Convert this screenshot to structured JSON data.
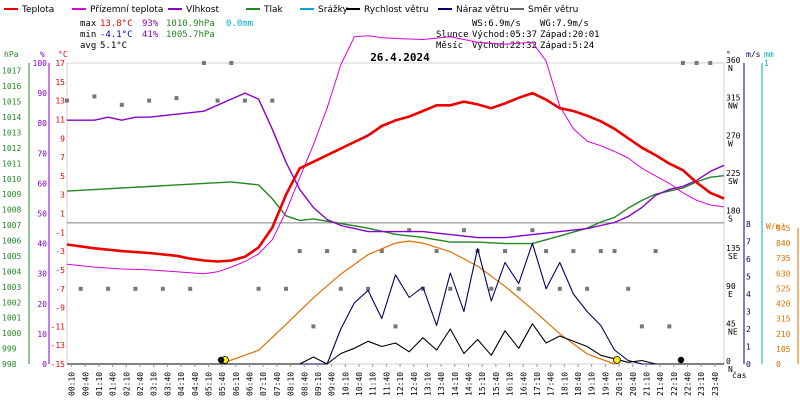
{
  "chart_data": {
    "type": "line",
    "title": "26.4.2024",
    "legend": [
      {
        "name": "Teplota",
        "color": "#ee0000"
      },
      {
        "name": "Přízemní teplota",
        "color": "#dd00dd"
      },
      {
        "name": "Vlhkost",
        "color": "#8800cc"
      },
      {
        "name": "Tlak",
        "color": "#228822"
      },
      {
        "name": "Srážky",
        "color": "#00aacc"
      },
      {
        "name": "Rychlost větru",
        "color": "#000000"
      },
      {
        "name": "Náraz větru",
        "color": "#000066"
      },
      {
        "name": "Směr větru",
        "color": "#666666"
      }
    ],
    "stats": {
      "max_label": "max",
      "max_temp": "13.8°C",
      "max_hum": "93%",
      "max_press": "1010.9hPa",
      "max_rain": "0.0mm",
      "min_label": "min",
      "min_temp": "-4.1°C",
      "min_hum": "41%",
      "min_press": "1005.7hPa",
      "avg_label": "avg",
      "avg_temp": "5.1°C",
      "ws": "WS:6.9m/s",
      "wg": "WG:7.9m/s",
      "sun_label": "Slunce",
      "sunrise": "Východ:05:37",
      "sunset": "Západ:20:01",
      "moon_label": "Měsíc",
      "moonrise": "Východ:22:32",
      "moonset": "Západ:5:24"
    },
    "axes": {
      "hpa_label": "hPa",
      "hum_label": "%",
      "temp_label": "°C",
      "dir_label": "°",
      "ms_label": "m/s",
      "mm_label": "mm",
      "wm2_label": "W/m²",
      "x_label": "čas",
      "hpa_ticks": [
        "1017",
        "1016",
        "1015",
        "1014",
        "1013",
        "1012",
        "1011",
        "1010",
        "1009",
        "1008",
        "1007",
        "1006",
        "1005",
        "1004",
        "1003",
        "1002",
        "1001",
        "1000",
        "999",
        "998"
      ],
      "hum_ticks": [
        "100",
        "90",
        "80",
        "70",
        "60",
        "50",
        "40",
        "30",
        "20",
        "10",
        "0"
      ],
      "temp_ticks": [
        "17",
        "15",
        "13",
        "11",
        "9",
        "7",
        "5",
        "3",
        "1",
        "-1",
        "-3",
        "-5",
        "-7",
        "-9",
        "-11",
        "-13",
        "-15"
      ],
      "dir_ticks": [
        {
          "deg": "360",
          "lab": "N"
        },
        {
          "deg": "315",
          "lab": "NW"
        },
        {
          "deg": "270",
          "lab": "W"
        },
        {
          "deg": "225",
          "lab": "SW"
        },
        {
          "deg": "180",
          "lab": "S"
        },
        {
          "deg": "135",
          "lab": "SE"
        },
        {
          "deg": "90",
          "lab": "E"
        },
        {
          "deg": "45",
          "lab": "NE"
        },
        {
          "deg": "0",
          "lab": "N"
        }
      ],
      "ms_ticks": [
        "8",
        "7",
        "6",
        "5",
        "4",
        "3",
        "2",
        "1",
        "0"
      ],
      "mm_ticks": [
        "1"
      ],
      "wm2_ticks": [
        "945",
        "840",
        "735",
        "630",
        "525",
        "420",
        "315",
        "210",
        "105",
        "0"
      ],
      "time_ticks": [
        "00:10",
        "00:40",
        "01:10",
        "01:40",
        "02:10",
        "02:40",
        "03:10",
        "03:40",
        "04:10",
        "04:40",
        "05:10",
        "05:40",
        "06:10",
        "06:40",
        "07:10",
        "07:40",
        "08:10",
        "08:40",
        "09:10",
        "09:40",
        "10:10",
        "10:40",
        "11:10",
        "11:40",
        "12:10",
        "12:40",
        "13:10",
        "13:40",
        "14:10",
        "14:40",
        "15:10",
        "15:40",
        "16:10",
        "16:40",
        "17:10",
        "17:40",
        "18:10",
        "18:40",
        "19:10",
        "19:40",
        "20:10",
        "20:40",
        "21:10",
        "21:40",
        "22:10",
        "22:40",
        "23:10",
        "23:40"
      ]
    },
    "temperature": {
      "x": [
        0,
        1,
        2,
        3,
        4,
        4.5,
        5,
        5.5,
        6,
        6.5,
        7,
        7.5,
        8,
        8.5,
        9,
        9.5,
        10,
        10.5,
        11,
        11.5,
        12,
        12.5,
        13,
        13.5,
        14,
        14.5,
        15,
        15.5,
        16,
        16.5,
        17,
        17.5,
        18,
        18.5,
        19,
        19.5,
        20,
        20.5,
        21,
        21.5,
        22,
        22.5,
        23,
        23.5,
        24
      ],
      "y": [
        -2.3,
        -2.7,
        -3.0,
        -3.2,
        -3.5,
        -3.8,
        -4.0,
        -4.1,
        -4.0,
        -3.6,
        -2.6,
        -0.5,
        3.0,
        5.8,
        6.5,
        7.2,
        7.9,
        8.6,
        9.3,
        10.3,
        10.9,
        11.3,
        11.9,
        12.5,
        12.5,
        12.9,
        12.6,
        12.2,
        12.7,
        13.3,
        13.8,
        13.1,
        12.2,
        11.9,
        11.4,
        10.8,
        10.0,
        9.0,
        8.0,
        7.2,
        6.3,
        5.6,
        4.3,
        3.2,
        2.6
      ]
    },
    "ground_temperature": {
      "x": [
        0,
        1,
        2,
        3,
        4,
        5,
        5.5,
        6,
        6.5,
        7,
        7.5,
        8,
        8.5,
        9,
        9.5,
        10,
        10.5,
        11,
        11.5,
        12,
        13,
        14,
        15,
        16,
        17,
        17.5,
        18,
        18.5,
        19,
        19.5,
        20,
        20.5,
        21,
        21.5,
        22,
        22.5,
        23,
        23.5,
        24
      ],
      "y": [
        -4.4,
        -4.7,
        -4.9,
        -5.0,
        -5.2,
        -5.4,
        -5.2,
        -4.7,
        -4.1,
        -3.3,
        -1.8,
        1.2,
        4.8,
        8.3,
        12.2,
        16.8,
        19.8,
        19.9,
        19.7,
        19.6,
        19.5,
        19.8,
        19.2,
        19.0,
        19.2,
        17.2,
        12.4,
        10.0,
        8.7,
        8.2,
        7.6,
        6.9,
        5.8,
        5.0,
        4.2,
        3.2,
        2.4,
        1.9,
        1.7
      ]
    },
    "humidity": {
      "x": [
        0,
        1,
        1.5,
        2,
        2.5,
        3,
        4,
        5,
        6,
        6.5,
        7,
        7.5,
        8,
        8.5,
        9,
        9.5,
        10,
        11,
        12,
        13,
        14,
        15,
        16,
        17,
        18,
        19,
        19.5,
        20,
        20.5,
        21,
        21.5,
        22,
        22.5,
        23,
        23.5,
        24
      ],
      "y": [
        81,
        81,
        82,
        81,
        82,
        82,
        83,
        84,
        88,
        90,
        88,
        78,
        67,
        58,
        52,
        48,
        46,
        44,
        44,
        44,
        43,
        42,
        42,
        43,
        44,
        45,
        46,
        47,
        49,
        52,
        56,
        58,
        59,
        61,
        64,
        66
      ]
    },
    "pressure": {
      "x": [
        0,
        1,
        2,
        3,
        4,
        5,
        6,
        6.5,
        7,
        7.5,
        8,
        8.5,
        9,
        10,
        11,
        12,
        13,
        14,
        15,
        16,
        17,
        18,
        19,
        19.5,
        20,
        20.5,
        21,
        21.5,
        22,
        22.5,
        23,
        23.5,
        24
      ],
      "y": [
        1009.2,
        1009.3,
        1009.4,
        1009.5,
        1009.6,
        1009.7,
        1009.8,
        1009.7,
        1009.6,
        1008.7,
        1007.6,
        1007.3,
        1007.4,
        1007.1,
        1006.8,
        1006.4,
        1006.2,
        1005.9,
        1005.9,
        1005.8,
        1005.8,
        1006.3,
        1006.8,
        1007.2,
        1007.5,
        1008.1,
        1008.6,
        1009.0,
        1009.2,
        1009.4,
        1009.8,
        1010.1,
        1010.2
      ]
    },
    "wind_speed": {
      "x": [
        0,
        1,
        2,
        3,
        4,
        5,
        6,
        6.5,
        7,
        7.5,
        8,
        8.5,
        9,
        9.5,
        10,
        10.5,
        11,
        11.5,
        12,
        12.5,
        13,
        13.5,
        14,
        14.5,
        15,
        15.5,
        16,
        16.5,
        17,
        17.5,
        18,
        18.5,
        19,
        19.5,
        20,
        20.5,
        21,
        21.5,
        22,
        22.5,
        23,
        23.5,
        24
      ],
      "y": [
        0,
        0,
        0,
        0,
        0,
        0,
        0,
        0,
        0,
        0,
        0,
        0,
        0.4,
        0,
        0.6,
        0.9,
        1.3,
        1.0,
        1.2,
        0.7,
        1.5,
        0.8,
        2.0,
        0.6,
        1.4,
        0.5,
        1.9,
        0.9,
        2.3,
        1.2,
        1.6,
        1.3,
        1.0,
        0.5,
        0.3,
        0.1,
        0.2,
        0,
        0,
        0,
        0,
        0,
        0
      ]
    },
    "wind_gust": {
      "x": [
        0,
        6,
        8,
        9,
        9.5,
        10,
        10.5,
        11,
        11.5,
        12,
        12.5,
        13,
        13.5,
        14,
        14.5,
        15,
        15.5,
        16,
        16.5,
        17,
        17.5,
        18,
        18.5,
        19,
        19.5,
        20,
        20.5,
        21,
        21.5,
        22,
        24
      ],
      "y": [
        0,
        0,
        0,
        0,
        0,
        2.0,
        3.5,
        4.2,
        2.6,
        5.1,
        3.8,
        4.4,
        2.2,
        5.2,
        3.0,
        6.6,
        3.6,
        5.8,
        4.6,
        6.9,
        4.3,
        5.8,
        4.0,
        3.0,
        2.2,
        0.8,
        0.2,
        0,
        0,
        0,
        0
      ]
    },
    "wind_direction": {
      "x": [
        0,
        0.5,
        1,
        1.5,
        2,
        2.5,
        3,
        3.5,
        4,
        4.5,
        5,
        5.5,
        6,
        6.5,
        7,
        7.5,
        8,
        8.5,
        9,
        9.5,
        10,
        10.5,
        11,
        11.5,
        12,
        12.5,
        13,
        13.5,
        14,
        14.5,
        15,
        15.5,
        16,
        16.5,
        17,
        17.5,
        18,
        18.5,
        19,
        19.5,
        20,
        20.5,
        21,
        21.5,
        22,
        22.5,
        23,
        23.5
      ],
      "y": [
        315,
        90,
        320,
        90,
        310,
        90,
        315,
        90,
        318,
        90,
        360,
        315,
        360,
        315,
        90,
        315,
        90,
        135,
        45,
        135,
        90,
        135,
        90,
        135,
        45,
        160,
        90,
        135,
        90,
        160,
        135,
        90,
        135,
        90,
        160,
        135,
        90,
        135,
        90,
        135,
        135,
        90,
        45,
        135,
        45,
        360,
        360,
        360
      ]
    },
    "solar": {
      "x": [
        5.6,
        7,
        8,
        9,
        10,
        11,
        12,
        12.5,
        13,
        14,
        15,
        16,
        17,
        18,
        19,
        20.0
      ],
      "y": [
        0,
        95,
        275,
        460,
        625,
        760,
        840,
        855,
        840,
        780,
        680,
        540,
        380,
        210,
        70,
        0
      ]
    }
  }
}
